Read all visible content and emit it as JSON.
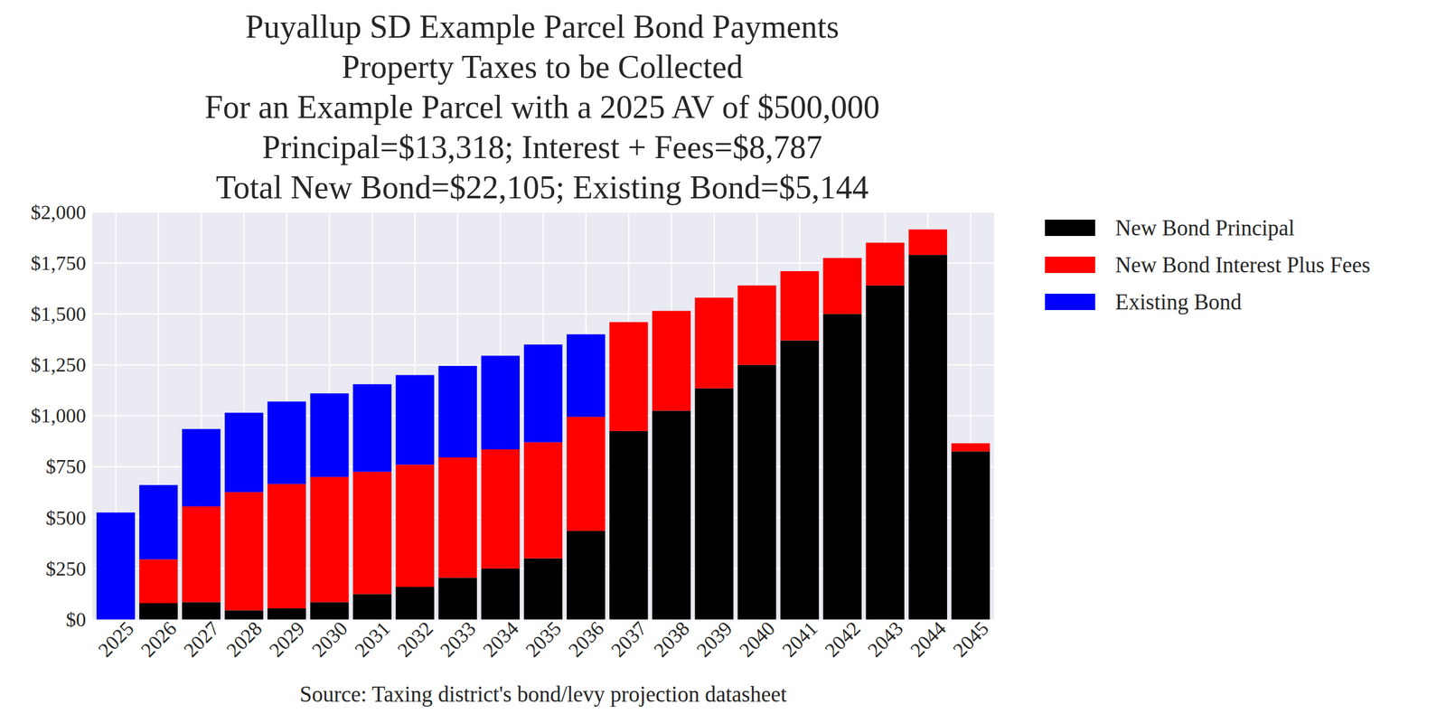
{
  "chart_data": {
    "type": "bar",
    "stacked": true,
    "grid": true,
    "legend": "outside-upper-right",
    "title": "Puyallup SD Example Parcel Bond Payments\nProperty Taxes to be Collected\nFor an Example Parcel with a 2025 AV of $500,000\nPrincipal=$13,318; Interest + Fees=$8,787\nTotal New Bond=$22,105; Existing Bond=$5,144",
    "x_label": "Source: Taxing district's bond/levy projection datasheet",
    "categories": [
      "2025",
      "2026",
      "2027",
      "2028",
      "2029",
      "2030",
      "2031",
      "2032",
      "2033",
      "2034",
      "2035",
      "2036",
      "2037",
      "2038",
      "2039",
      "2040",
      "2041",
      "2042",
      "2043",
      "2044",
      "2045"
    ],
    "series": [
      {
        "name": "New Bond Principal",
        "color": "#000000",
        "values": [
          0,
          80,
          85,
          45,
          55,
          85,
          125,
          160,
          205,
          250,
          300,
          435,
          925,
          1025,
          1135,
          1250,
          1370,
          1500,
          1640,
          1790,
          825
        ]
      },
      {
        "name": "New Bond Interest Plus Fees",
        "color": "#ff0000",
        "values": [
          0,
          215,
          470,
          580,
          610,
          615,
          600,
          600,
          590,
          585,
          570,
          560,
          535,
          490,
          445,
          390,
          340,
          275,
          210,
          125,
          40
        ]
      },
      {
        "name": "Existing Bond",
        "color": "#0000ff",
        "values": [
          525,
          365,
          380,
          390,
          405,
          410,
          430,
          440,
          450,
          460,
          480,
          405,
          0,
          0,
          0,
          0,
          0,
          0,
          0,
          0,
          0
        ]
      }
    ],
    "ylim": [
      0,
      2000
    ],
    "yticks": [
      {
        "value": 0,
        "label": "$0"
      },
      {
        "value": 250,
        "label": "$250"
      },
      {
        "value": 500,
        "label": "$500"
      },
      {
        "value": 750,
        "label": "$750"
      },
      {
        "value": 1000,
        "label": "$1,000"
      },
      {
        "value": 1250,
        "label": "$1,250"
      },
      {
        "value": 1500,
        "label": "$1,500"
      },
      {
        "value": 1750,
        "label": "$1,750"
      },
      {
        "value": 2000,
        "label": "$2,000"
      }
    ]
  }
}
